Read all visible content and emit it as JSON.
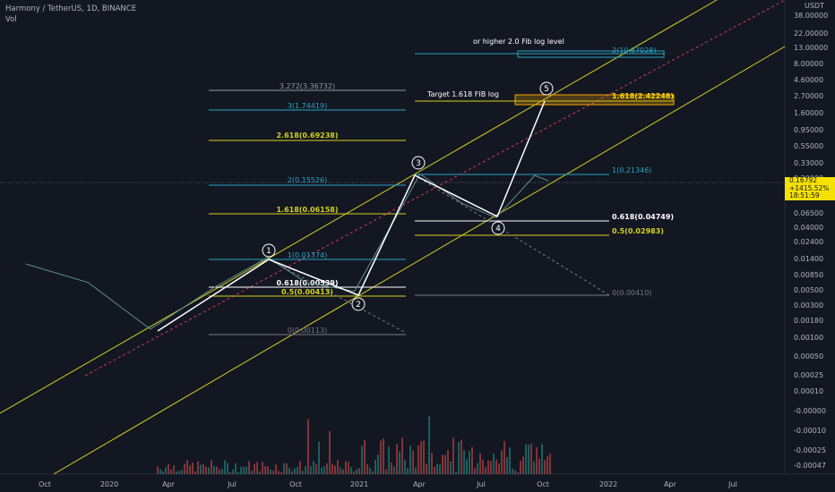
{
  "header": {
    "symbol": "Harmony / TetherUS, 1D, BINANCE",
    "vol": "Vol"
  },
  "price_axis": {
    "currency": "USDT",
    "ticks": [
      "38.00000",
      "22.00000",
      "13.00000",
      "8.00000",
      "4.60000",
      "2.70000",
      "1.60000",
      "0.95000",
      "0.55000",
      "0.33000",
      "0.20000",
      "0.06500",
      "0.04000",
      "0.02400",
      "0.01400",
      "0.00850",
      "0.00500",
      "0.00300",
      "0.00180",
      "0.00100"
    ],
    "current_price": "0.16792",
    "change_pct": "+1415.52%",
    "countdown": "18:51:59"
  },
  "volume_axis": {
    "ticks": [
      "0.00050",
      "0.00025",
      "0.00010",
      "-0.00000",
      "-0.00010",
      "-0.00025",
      "-0.00047"
    ]
  },
  "time_axis": {
    "ticks": [
      "Oct",
      "2020",
      "Apr",
      "Jul",
      "Oct",
      "2021",
      "Apr",
      "Jul",
      "Oct",
      "2022",
      "Apr",
      "Jul"
    ]
  },
  "annotations": {
    "target_text": "Target 1.618 FIB log",
    "higher_text": "or higher 2.0 Fib log level",
    "wave_labels": [
      "1",
      "2",
      "3",
      "4",
      "5"
    ]
  },
  "fib_levels": {
    "set1": [
      "3.272(3.36732)",
      "3(1.74419)",
      "2.618(0.69238)",
      "2(0.15526)",
      "1.618(0.06158)"
    ],
    "set2": [
      "1(0.01374)",
      "0.618(0.00539)",
      "0.5(0.00413)",
      "0(0.00113)"
    ],
    "set3": [
      "1(0.21346)",
      "0.618(0.04749)",
      "0.5(0.02983)",
      "0(0.00410)"
    ],
    "set4": [
      "2(10.87028)",
      "1.618(2.42248)"
    ]
  },
  "colors": {
    "background": "#131722",
    "yellow": "#d4d01e",
    "cyan": "#26a6c4",
    "white": "#ffffff",
    "red_dashed": "#d83b5c",
    "gray": "#787b86",
    "orange_box": "#f7a600"
  },
  "chart_data": {
    "type": "line",
    "scale": "log",
    "title": "Harmony / TetherUS, 1D, BINANCE",
    "x": [
      "2019-09-01",
      "2019-12-01",
      "2020-03-01",
      "2020-06-01",
      "2020-08-20",
      "2020-10-15",
      "2020-12-25",
      "2021-03-31",
      "2021-06-01",
      "2021-07-20",
      "2021-09-15",
      "2021-10-05"
    ],
    "series": [
      {
        "name": "",
        "values": [
          0.011,
          0.006,
          0.0013,
          0.005,
          0.0137,
          0.006,
          0.0045,
          0.21,
          0.08,
          0.05,
          0.2,
          0.168
        ]
      }
    ],
    "wave_points": [
      {
        "label": "1",
        "price": 0.01374
      },
      {
        "label": "2",
        "price": 0.00413
      },
      {
        "label": "3",
        "price": 0.21346
      },
      {
        "label": "4",
        "price": 0.04749
      },
      {
        "label": "5",
        "price": 2.42248
      }
    ],
    "wave_start_price": 0.00113
  }
}
